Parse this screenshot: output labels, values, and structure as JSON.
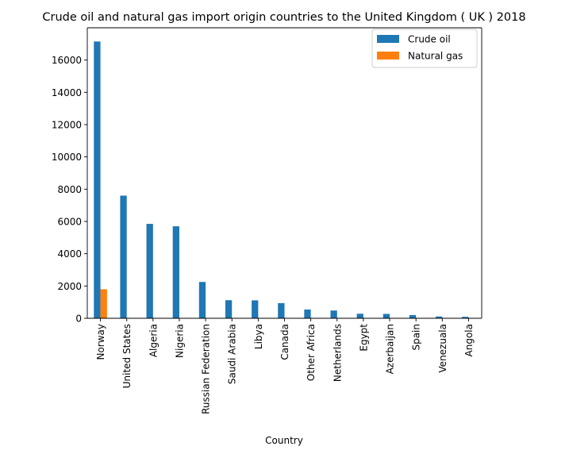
{
  "chart_data": {
    "type": "bar",
    "title": "Crude oil and natural gas import origin countries to the United Kingdom ( UK ) 2018",
    "xlabel": "Country",
    "ylabel": "",
    "categories": [
      "Norway",
      "United States",
      "Algeria",
      "Nigeria",
      "Russian Federation",
      "Saudi Arabia",
      "Libya",
      "Canada",
      "Other Africa",
      "Netherlands",
      "Egypt",
      "Azerbaijan",
      "Spain",
      "Venezuala",
      "Angola"
    ],
    "series": [
      {
        "name": "Crude oil",
        "color": "#1f77b4",
        "values": [
          17150,
          7600,
          5850,
          5700,
          2250,
          1120,
          1110,
          940,
          540,
          480,
          280,
          270,
          200,
          110,
          90
        ]
      },
      {
        "name": "Natural gas",
        "color": "#ff7f0e",
        "values": [
          1800,
          0,
          0,
          0,
          0,
          0,
          0,
          0,
          0,
          0,
          0,
          0,
          0,
          0,
          0
        ]
      }
    ],
    "yticks": [
      0,
      2000,
      4000,
      6000,
      8000,
      10000,
      12000,
      14000,
      16000
    ],
    "ylim": [
      0,
      18000
    ],
    "grid": false,
    "legend_position": "upper right"
  }
}
